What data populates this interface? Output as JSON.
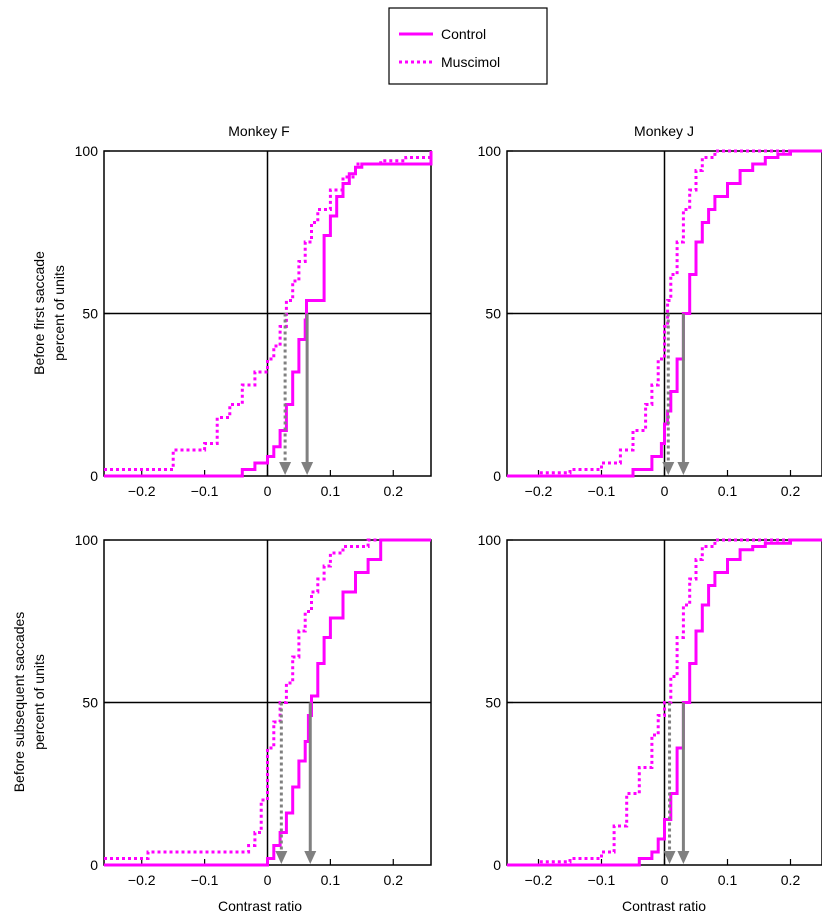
{
  "legend": {
    "placement": "top-center",
    "items": [
      {
        "label": "Control",
        "style": "solid"
      },
      {
        "label": "Muscimol",
        "style": "dotted"
      }
    ]
  },
  "colors": {
    "series": "#ff00ff",
    "arrow": "#808080",
    "axes": "#000000"
  },
  "chart_data": [
    {
      "type": "line",
      "title": "Monkey F",
      "ylabel_line1": "Before first saccade",
      "ylabel_line2": "percent of units",
      "xlabel": "",
      "xlim": [
        -0.26,
        0.26
      ],
      "ylim": [
        0,
        100
      ],
      "x_ticks": [
        "−0.2",
        "−0.1",
        "0",
        "0.1",
        "0.2"
      ],
      "x_tick_values": [
        -0.2,
        -0.1,
        0,
        0.1,
        0.2
      ],
      "y_ticks": [
        "0",
        "50",
        "100"
      ],
      "y_tick_values": [
        0,
        50,
        100
      ],
      "median_control": 0.063,
      "median_muscimol": 0.028,
      "series": [
        {
          "name": "Control",
          "style": "solid",
          "x": [
            -0.26,
            -0.06,
            -0.04,
            -0.02,
            0.0,
            0.01,
            0.02,
            0.03,
            0.04,
            0.05,
            0.06,
            0.062,
            0.08,
            0.09,
            0.1,
            0.11,
            0.12,
            0.13,
            0.14,
            0.15,
            0.16,
            0.2,
            0.22,
            0.24,
            0.255,
            0.26
          ],
          "y": [
            0,
            0,
            2,
            4,
            6,
            9,
            14,
            22,
            32,
            42,
            48,
            54,
            54,
            74,
            80,
            86,
            90,
            93,
            95,
            96,
            96,
            96,
            96,
            96,
            96,
            100
          ]
        },
        {
          "name": "Muscimol",
          "style": "dotted",
          "x": [
            -0.26,
            -0.16,
            -0.15,
            -0.12,
            -0.1,
            -0.08,
            -0.06,
            -0.04,
            -0.02,
            0.0,
            0.01,
            0.02,
            0.03,
            0.04,
            0.05,
            0.06,
            0.07,
            0.08,
            0.1,
            0.12,
            0.14,
            0.18,
            0.22,
            0.26
          ],
          "y": [
            2,
            2,
            8,
            8,
            10,
            18,
            22,
            28,
            32,
            36,
            40,
            46,
            54,
            60,
            66,
            72,
            78,
            82,
            88,
            92,
            96,
            97,
            98,
            100
          ]
        }
      ]
    },
    {
      "type": "line",
      "title": "Monkey J",
      "xlabel": "",
      "xlim": [
        -0.25,
        0.25
      ],
      "ylim": [
        0,
        100
      ],
      "x_ticks": [
        "−0.2",
        "−0.1",
        "0",
        "0.1",
        "0.2"
      ],
      "x_tick_values": [
        -0.2,
        -0.1,
        0,
        0.1,
        0.2
      ],
      "y_ticks": [
        "0",
        "50",
        "100"
      ],
      "y_tick_values": [
        0,
        50,
        100
      ],
      "median_control": 0.03,
      "median_muscimol": 0.006,
      "series": [
        {
          "name": "Control",
          "style": "solid",
          "x": [
            -0.25,
            -0.1,
            -0.05,
            -0.02,
            -0.005,
            0.0,
            0.005,
            0.01,
            0.02,
            0.03,
            0.04,
            0.05,
            0.06,
            0.07,
            0.08,
            0.1,
            0.12,
            0.14,
            0.16,
            0.18,
            0.2,
            0.25
          ],
          "y": [
            0,
            0,
            2,
            6,
            10,
            16,
            20,
            26,
            36,
            50,
            62,
            72,
            78,
            82,
            86,
            90,
            94,
            96,
            98,
            99,
            100,
            100
          ]
        },
        {
          "name": "Muscimol",
          "style": "dotted",
          "x": [
            -0.25,
            -0.2,
            -0.15,
            -0.1,
            -0.07,
            -0.05,
            -0.03,
            -0.02,
            -0.01,
            0.0,
            0.005,
            0.01,
            0.02,
            0.03,
            0.04,
            0.05,
            0.06,
            0.08,
            0.1,
            0.25
          ],
          "y": [
            0,
            1,
            2,
            4,
            8,
            14,
            22,
            28,
            36,
            46,
            54,
            62,
            72,
            82,
            88,
            94,
            98,
            100,
            100,
            100
          ]
        }
      ]
    },
    {
      "type": "line",
      "title": "",
      "ylabel_line1": "Before subsequent saccades",
      "ylabel_line2": "percent of units",
      "xlabel": "Contrast ratio",
      "xlim": [
        -0.26,
        0.26
      ],
      "ylim": [
        0,
        100
      ],
      "x_ticks": [
        "−0.2",
        "−0.1",
        "0",
        "0.1",
        "0.2"
      ],
      "x_tick_values": [
        -0.2,
        -0.1,
        0,
        0.1,
        0.2
      ],
      "y_ticks": [
        "0",
        "50",
        "100"
      ],
      "y_tick_values": [
        0,
        50,
        100
      ],
      "median_control": 0.068,
      "median_muscimol": 0.022,
      "series": [
        {
          "name": "Control",
          "style": "solid",
          "x": [
            -0.26,
            -0.01,
            0.0,
            0.01,
            0.02,
            0.03,
            0.04,
            0.05,
            0.06,
            0.065,
            0.07,
            0.08,
            0.09,
            0.1,
            0.12,
            0.14,
            0.16,
            0.18,
            0.2,
            0.26
          ],
          "y": [
            0,
            0,
            2,
            6,
            10,
            16,
            24,
            32,
            38,
            46,
            52,
            62,
            70,
            76,
            84,
            90,
            94,
            100,
            100,
            100
          ]
        },
        {
          "name": "Muscimol",
          "style": "dotted",
          "x": [
            -0.26,
            -0.2,
            -0.19,
            -0.05,
            -0.03,
            -0.02,
            -0.01,
            0.0,
            0.01,
            0.02,
            0.03,
            0.04,
            0.05,
            0.06,
            0.07,
            0.08,
            0.09,
            0.1,
            0.12,
            0.16,
            0.26
          ],
          "y": [
            2,
            2,
            4,
            4,
            6,
            10,
            20,
            36,
            44,
            50,
            56,
            64,
            72,
            78,
            84,
            88,
            92,
            96,
            98,
            100,
            100
          ]
        }
      ]
    },
    {
      "type": "line",
      "title": "",
      "xlabel": "Contrast ratio",
      "xlim": [
        -0.25,
        0.25
      ],
      "ylim": [
        0,
        100
      ],
      "x_ticks": [
        "−0.2",
        "−0.1",
        "0",
        "0.1",
        "0.2"
      ],
      "x_tick_values": [
        -0.2,
        -0.1,
        0,
        0.1,
        0.2
      ],
      "y_ticks": [
        "0",
        "50",
        "100"
      ],
      "y_tick_values": [
        0,
        50,
        100
      ],
      "median_control": 0.03,
      "median_muscimol": 0.008,
      "series": [
        {
          "name": "Control",
          "style": "solid",
          "x": [
            -0.25,
            -0.08,
            -0.04,
            -0.02,
            -0.01,
            0.0,
            0.01,
            0.02,
            0.03,
            0.04,
            0.05,
            0.06,
            0.07,
            0.08,
            0.1,
            0.12,
            0.14,
            0.16,
            0.2,
            0.25
          ],
          "y": [
            0,
            0,
            2,
            4,
            8,
            14,
            22,
            36,
            50,
            62,
            72,
            80,
            86,
            90,
            94,
            97,
            98,
            99,
            100,
            100
          ]
        },
        {
          "name": "Muscimol",
          "style": "dotted",
          "x": [
            -0.25,
            -0.2,
            -0.15,
            -0.1,
            -0.08,
            -0.06,
            -0.04,
            -0.02,
            -0.01,
            0.0,
            0.01,
            0.02,
            0.03,
            0.04,
            0.05,
            0.06,
            0.08,
            0.25
          ],
          "y": [
            0,
            1,
            2,
            4,
            12,
            22,
            30,
            40,
            46,
            50,
            58,
            70,
            80,
            88,
            94,
            98,
            100,
            100
          ]
        }
      ]
    }
  ]
}
